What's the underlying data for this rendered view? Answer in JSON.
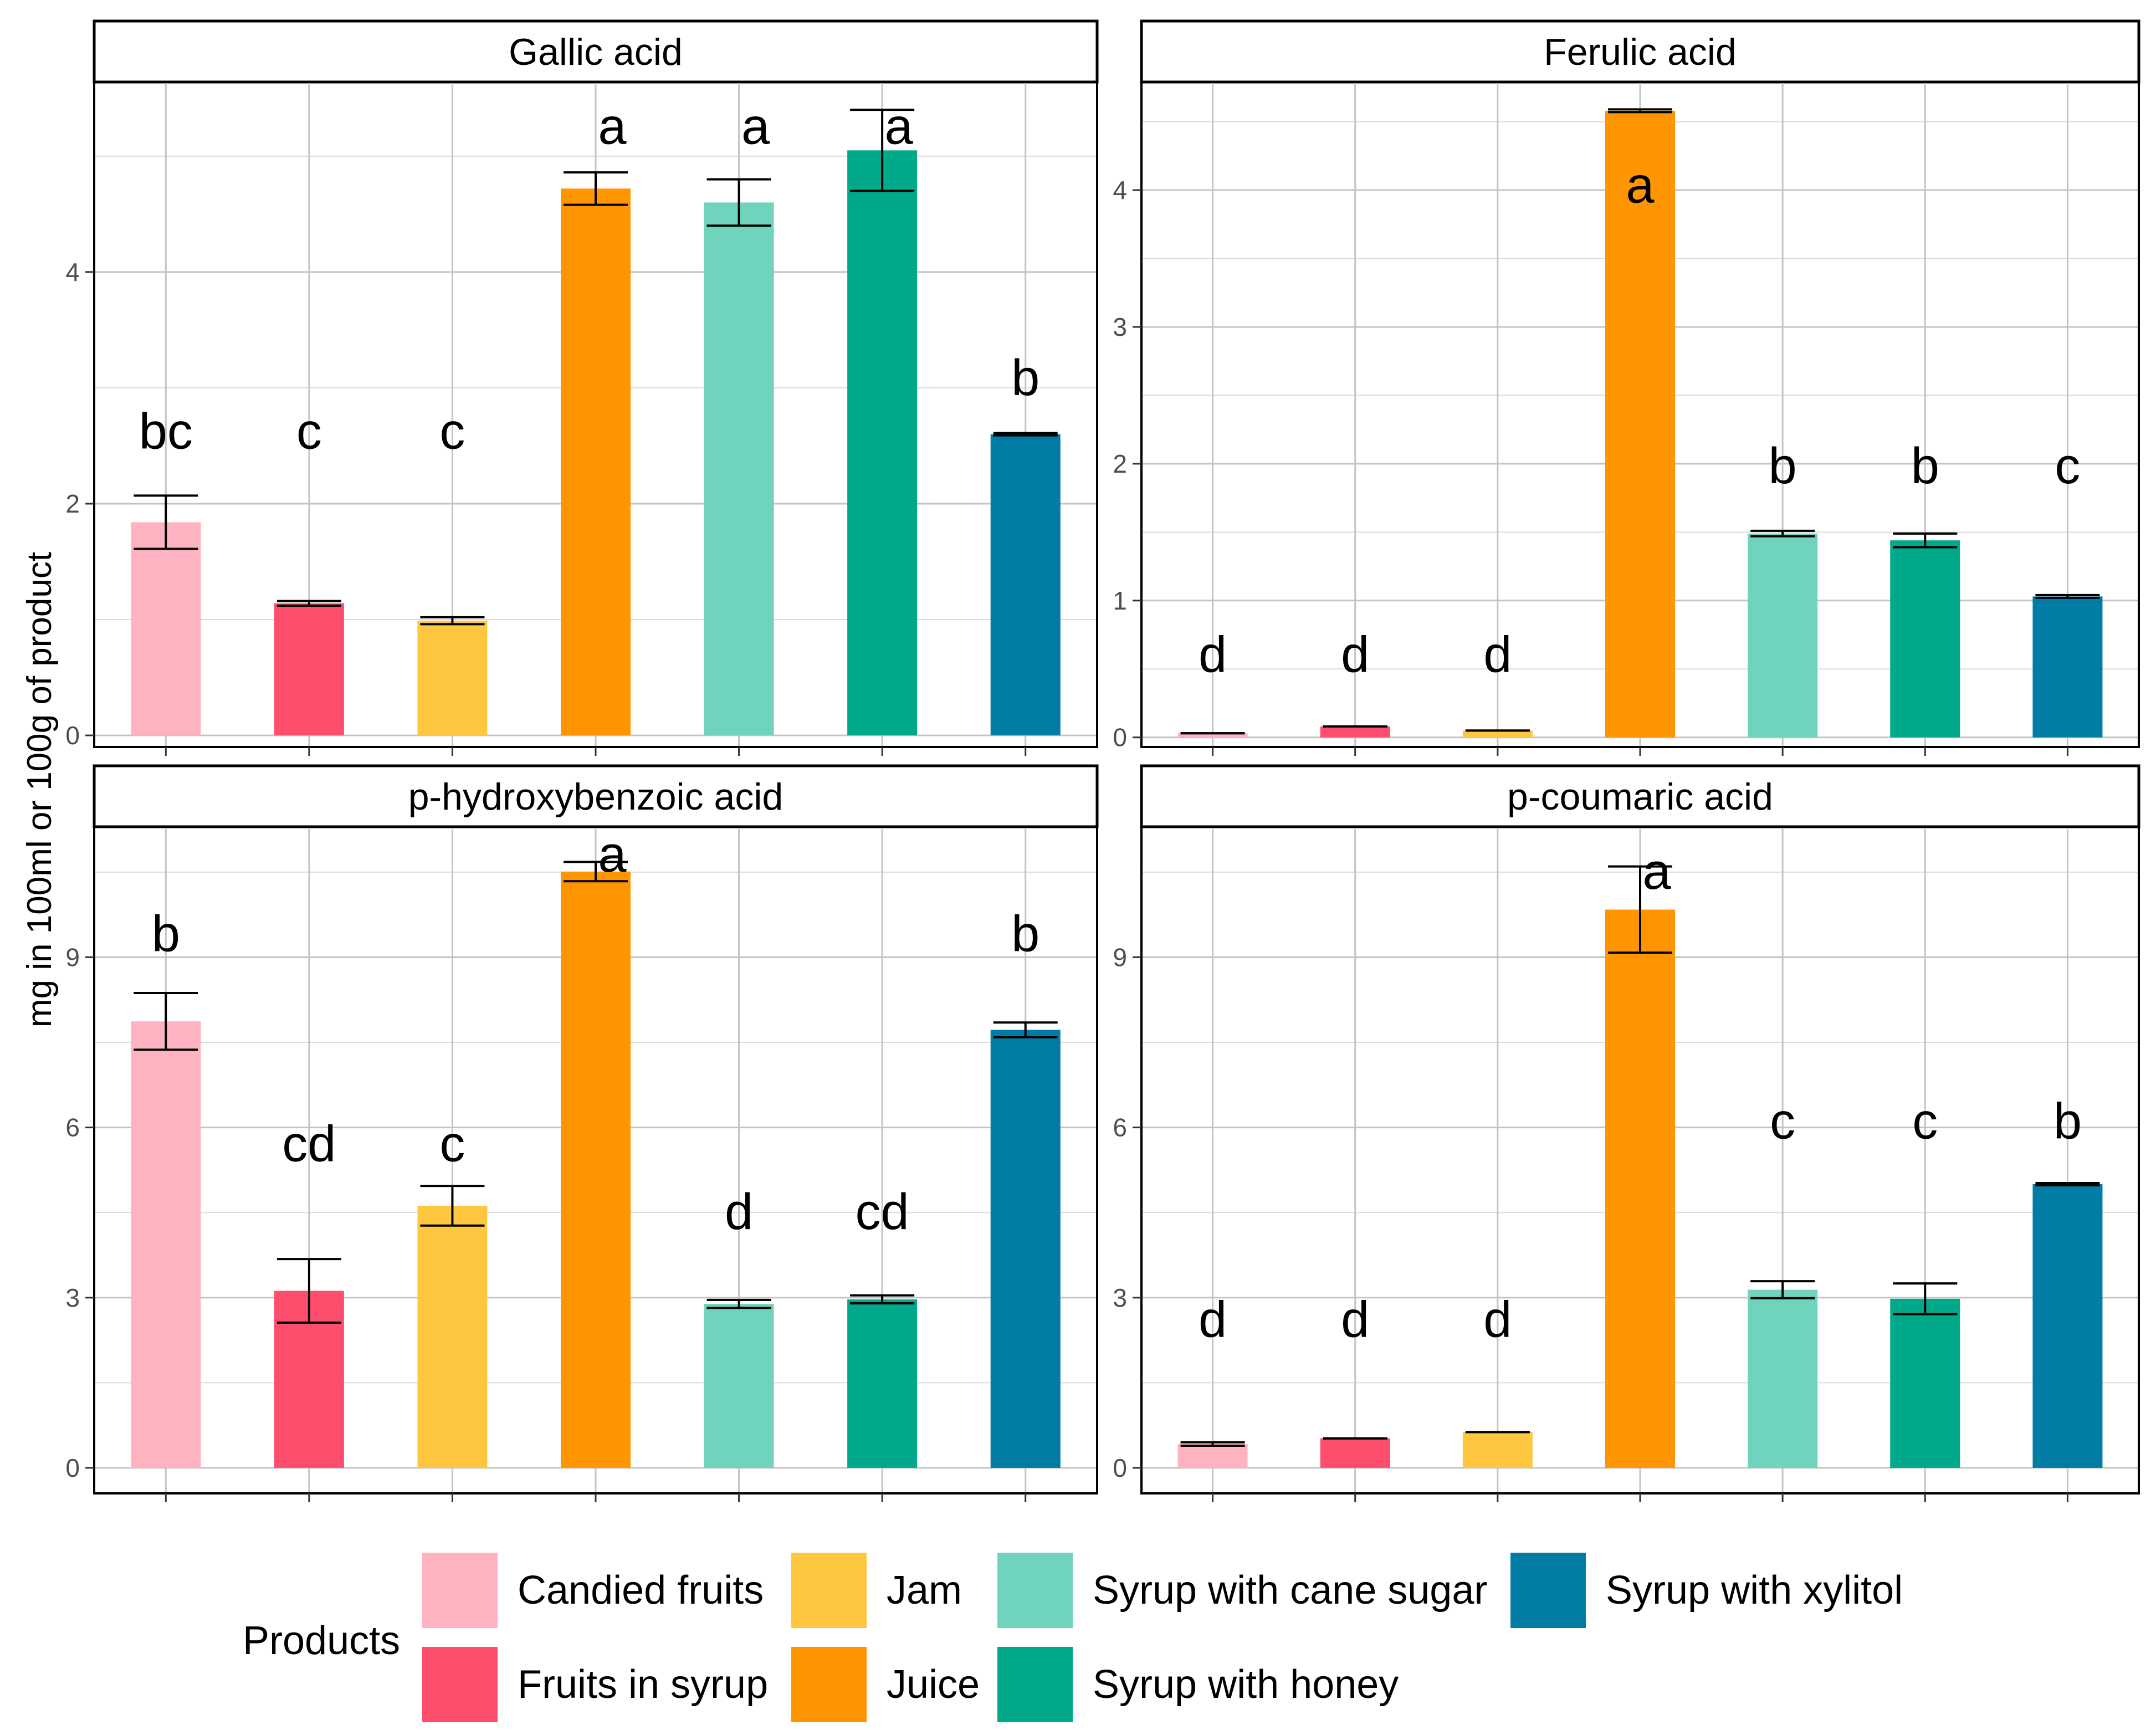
{
  "figure": {
    "ylabel": "mg in 100ml or 100g of product"
  },
  "legend": {
    "title": "Products",
    "items": [
      {
        "label": "Candied fruits",
        "color": "#FFB3C1"
      },
      {
        "label": "Fruits in syrup",
        "color": "#FF4D6D"
      },
      {
        "label": "Jam",
        "color": "#FFC640"
      },
      {
        "label": "Juice",
        "color": "#FF9500"
      },
      {
        "label": "Syrup with cane sugar",
        "color": "#70D3BE"
      },
      {
        "label": "Syrup with honey",
        "color": "#00A98A"
      },
      {
        "label": "Syrup with xylitol",
        "color": "#007CA5"
      }
    ]
  },
  "chart_data": [
    {
      "type": "bar",
      "title": "Gallic acid",
      "categories": [
        "Candied fruits",
        "Fruits in syrup",
        "Jam",
        "Juice",
        "Syrup with cane sugar",
        "Syrup with honey",
        "Syrup with xylitol"
      ],
      "values": [
        1.84,
        1.14,
        0.99,
        4.72,
        4.6,
        5.05,
        2.6
      ],
      "errors": [
        0.23,
        0.02,
        0.03,
        0.14,
        0.2,
        0.35,
        0.01
      ],
      "letters": [
        "bc",
        "c",
        "c",
        "a",
        "a",
        "a",
        "b"
      ],
      "letter_values": [
        2.62,
        2.62,
        2.62,
        5.25,
        5.25,
        5.25,
        3.08
      ],
      "ylim": [
        -0.1,
        5.64
      ],
      "yticks": [
        0,
        2,
        4
      ],
      "ytick_labels": [
        "0",
        "2",
        "4"
      ]
    },
    {
      "type": "bar",
      "title": "Ferulic acid",
      "categories": [
        "Candied fruits",
        "Fruits in syrup",
        "Jam",
        "Juice",
        "Syrup with cane sugar",
        "Syrup with honey",
        "Syrup with xylitol"
      ],
      "values": [
        0.03,
        0.08,
        0.05,
        4.58,
        1.49,
        1.44,
        1.03
      ],
      "errors": [
        0.0,
        0.0,
        0.0,
        0.01,
        0.02,
        0.05,
        0.01
      ],
      "letters": [
        "d",
        "d",
        "d",
        "a",
        "b",
        "b",
        "c"
      ],
      "letter_values": [
        0.6,
        0.6,
        0.6,
        4.03,
        1.98,
        1.98,
        1.98
      ],
      "ylim": [
        -0.07,
        4.79
      ],
      "yticks": [
        0,
        1,
        2,
        3,
        4
      ],
      "ytick_labels": [
        "0",
        "1",
        "2",
        "3",
        "4"
      ]
    },
    {
      "type": "bar",
      "title": "p-hydroxybenzoic acid",
      "categories": [
        "Candied fruits",
        "Fruits in syrup",
        "Jam",
        "Juice",
        "Syrup with cane sugar",
        "Syrup with honey",
        "Syrup with xylitol"
      ],
      "values": [
        7.87,
        3.12,
        4.62,
        10.51,
        2.89,
        2.97,
        7.72
      ],
      "errors": [
        0.5,
        0.56,
        0.35,
        0.17,
        0.07,
        0.07,
        0.13
      ],
      "letters": [
        "b",
        "cd",
        "c",
        "a",
        "d",
        "cd",
        "b"
      ],
      "letter_values": [
        9.4,
        5.7,
        5.7,
        10.8,
        4.5,
        4.5,
        9.4
      ],
      "ylim": [
        -0.45,
        11.3
      ],
      "yticks": [
        0,
        3,
        6,
        9
      ],
      "ytick_labels": [
        "0",
        "3",
        "6",
        "9"
      ]
    },
    {
      "type": "bar",
      "title": "p-coumaric acid",
      "categories": [
        "Candied fruits",
        "Fruits in syrup",
        "Jam",
        "Juice",
        "Syrup with cane sugar",
        "Syrup with honey",
        "Syrup with xylitol"
      ],
      "values": [
        0.42,
        0.52,
        0.63,
        9.84,
        3.14,
        2.98,
        5.0
      ],
      "errors": [
        0.03,
        0.0,
        0.0,
        0.76,
        0.15,
        0.27,
        0.02
      ],
      "letters": [
        "d",
        "d",
        "d",
        "a",
        "c",
        "c",
        "b"
      ],
      "letter_values": [
        2.6,
        2.6,
        2.6,
        10.5,
        6.1,
        6.1,
        6.1
      ],
      "ylim": [
        -0.45,
        11.3
      ],
      "yticks": [
        0,
        3,
        6,
        9
      ],
      "ytick_labels": [
        "0",
        "3",
        "6",
        "9"
      ]
    }
  ]
}
